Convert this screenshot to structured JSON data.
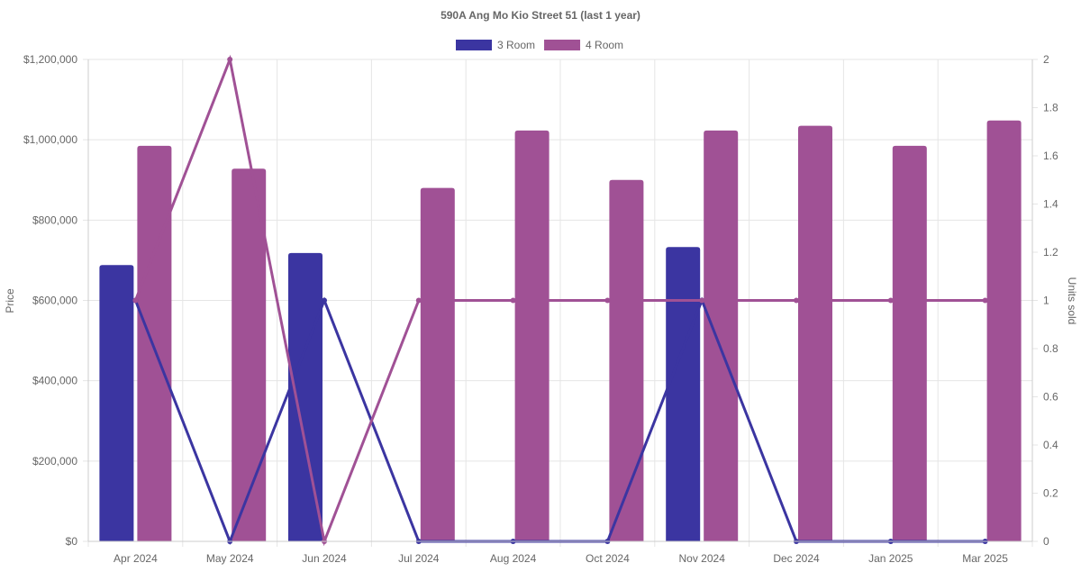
{
  "chart_data": {
    "type": "bar",
    "title": "590A Ang Mo Kio Street 51 (last 1 year)",
    "categories": [
      "Apr 2024",
      "May 2024",
      "Jun 2024",
      "Jul 2024",
      "Aug 2024",
      "Oct 2024",
      "Nov 2024",
      "Dec 2024",
      "Jan 2025",
      "Mar 2025"
    ],
    "ylabel": "Price",
    "y2label": "Units sold",
    "ylim": [
      0,
      1200000
    ],
    "y2lim": [
      0,
      2
    ],
    "yticks": [
      "$0",
      "$200,000",
      "$400,000",
      "$600,000",
      "$800,000",
      "$1,000,000",
      "$1,200,000"
    ],
    "y2ticks": [
      "0",
      "0.2",
      "0.4",
      "0.6",
      "0.8",
      "1",
      "1.2",
      "1.4",
      "1.6",
      "1.8",
      "2"
    ],
    "legend_position": "top",
    "grid": true,
    "series": [
      {
        "name": "3 Room",
        "color": "#3b35a1",
        "price": [
          688000,
          null,
          718000,
          null,
          null,
          null,
          733000,
          null,
          null,
          null
        ],
        "units": [
          1,
          0,
          1,
          0,
          0,
          0,
          1,
          0,
          0,
          0
        ]
      },
      {
        "name": "4 Room",
        "color": "#a05195",
        "price": [
          985000,
          928000,
          null,
          880000,
          1023000,
          900000,
          1023000,
          1035000,
          985000,
          1048000
        ],
        "units": [
          1,
          2,
          0,
          1,
          1,
          1,
          1,
          1,
          1,
          1
        ]
      }
    ]
  }
}
